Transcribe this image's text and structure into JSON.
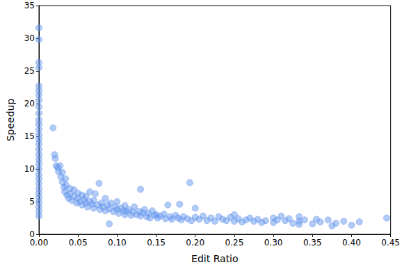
{
  "chart_data": {
    "type": "scatter",
    "x_label": "Edit Ratio",
    "y_label": "Speedup",
    "color": "#6495ed",
    "marker": "circle",
    "grid": false,
    "xlim": [
      0,
      0.45
    ],
    "xticks": [
      {
        "value": 0,
        "label": "0.00"
      },
      {
        "value": 0.05,
        "label": "0.05"
      },
      {
        "value": 0.1,
        "label": "0.10"
      },
      {
        "value": 0.15,
        "label": "0.15"
      },
      {
        "value": 0.2,
        "label": "0.20"
      },
      {
        "value": 0.25,
        "label": "0.25"
      },
      {
        "value": 0.3,
        "label": "0.30"
      },
      {
        "value": 0.35,
        "label": "0.35"
      },
      {
        "value": 0.4,
        "label": "0.40"
      },
      {
        "value": 0.45,
        "label": "0.45"
      }
    ],
    "ylim": [
      0,
      35
    ],
    "yticks": [
      0,
      5,
      10,
      15,
      20,
      25,
      30,
      35
    ],
    "x": [
      0,
      0,
      0,
      0,
      0,
      0,
      0,
      0,
      0,
      0,
      0,
      0,
      0,
      0,
      0,
      0,
      0,
      0,
      0,
      0,
      0,
      0,
      0,
      0,
      0,
      0,
      0,
      0,
      0,
      0,
      0,
      0.018,
      0.02,
      0.021,
      0.022,
      0.024,
      0.025,
      0.027,
      0.028,
      0.03,
      0.03,
      0.032,
      0.033,
      0.034,
      0.035,
      0.036,
      0.038,
      0.04,
      0.04,
      0.042,
      0.045,
      0.045,
      0.048,
      0.05,
      0.05,
      0.052,
      0.055,
      0.055,
      0.058,
      0.06,
      0.06,
      0.062,
      0.065,
      0.065,
      0.068,
      0.07,
      0.07,
      0.072,
      0.075,
      0.077,
      0.078,
      0.08,
      0.082,
      0.085,
      0.085,
      0.088,
      0.09,
      0.09,
      0.092,
      0.095,
      0.098,
      0.1,
      0.1,
      0.102,
      0.105,
      0.108,
      0.11,
      0.11,
      0.112,
      0.115,
      0.118,
      0.12,
      0.122,
      0.125,
      0.128,
      0.13,
      0.13,
      0.133,
      0.135,
      0.138,
      0.14,
      0.142,
      0.145,
      0.148,
      0.15,
      0.152,
      0.155,
      0.16,
      0.162,
      0.165,
      0.168,
      0.17,
      0.175,
      0.178,
      0.18,
      0.182,
      0.185,
      0.19,
      0.193,
      0.195,
      0.2,
      0.2,
      0.205,
      0.21,
      0.215,
      0.22,
      0.225,
      0.23,
      0.235,
      0.24,
      0.245,
      0.25,
      0.25,
      0.255,
      0.26,
      0.265,
      0.27,
      0.275,
      0.28,
      0.285,
      0.29,
      0.3,
      0.3,
      0.305,
      0.31,
      0.315,
      0.32,
      0.325,
      0.333,
      0.333,
      0.333,
      0.34,
      0.35,
      0.355,
      0.36,
      0.37,
      0.375,
      0.38,
      0.39,
      0.4,
      0.41,
      0.445
    ],
    "values": [
      31.6,
      29.8,
      26.3,
      25.5,
      22.7,
      22.0,
      21.3,
      20.5,
      19.5,
      18.5,
      17.5,
      16.8,
      16.0,
      15.2,
      14.5,
      13.8,
      13.0,
      12.2,
      11.5,
      10.8,
      10.0,
      9.2,
      8.5,
      7.8,
      7.0,
      6.3,
      5.6,
      4.9,
      4.2,
      3.5,
      2.8,
      16.3,
      12.2,
      11.6,
      10.5,
      10.2,
      9.6,
      10.5,
      8.8,
      9.5,
      8.0,
      7.2,
      6.5,
      8.5,
      7.5,
      6.0,
      5.5,
      7.0,
      6.2,
      5.2,
      5.8,
      6.8,
      4.8,
      5.5,
      6.3,
      5.0,
      4.5,
      6.0,
      5.3,
      4.8,
      5.8,
      4.2,
      5.0,
      6.5,
      4.6,
      5.2,
      4.0,
      6.2,
      4.5,
      7.8,
      3.8,
      4.8,
      4.2,
      5.5,
      3.6,
      4.5,
      3.9,
      1.6,
      4.8,
      3.5,
      4.2,
      3.8,
      5.0,
      3.2,
      4.0,
      3.6,
      4.4,
      3.0,
      3.5,
      3.8,
      2.9,
      3.4,
      4.2,
      3.0,
      3.5,
      6.9,
      2.8,
      3.3,
      3.8,
      2.7,
      3.2,
      2.5,
      3.6,
      2.9,
      3.0,
      2.5,
      2.8,
      3.1,
      2.4,
      4.5,
      2.7,
      2.3,
      2.9,
      2.5,
      4.6,
      2.2,
      2.7,
      2.4,
      7.9,
      2.1,
      2.6,
      4.0,
      2.3,
      2.8,
      2.1,
      2.5,
      2.0,
      2.7,
      2.3,
      2.1,
      2.6,
      2.0,
      3.0,
      2.4,
      1.9,
      2.2,
      2.5,
      2.0,
      2.3,
      1.8,
      2.1,
      2.5,
      1.8,
      2.2,
      2.8,
      2.1,
      2.4,
      1.7,
      2.7,
      2.0,
      1.5,
      2.2,
      1.6,
      2.3,
      1.9,
      2.2,
      1.3,
      1.7,
      2.0,
      1.4,
      1.9,
      2.5
    ]
  }
}
